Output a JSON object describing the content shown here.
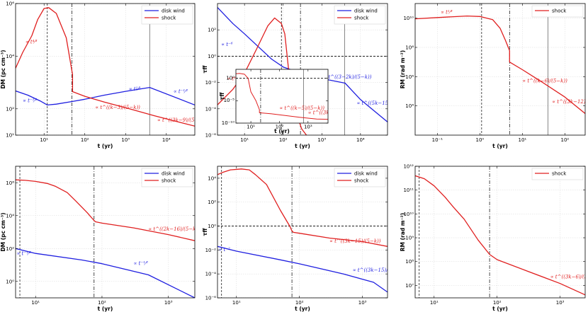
{
  "colors": {
    "disk_wind": "#1f1fe0",
    "shock": "#e01f1f",
    "grid": "#d9d9d9",
    "axis": "#000000"
  },
  "chart_data": [
    {
      "type": "line",
      "row": 0,
      "col": 0,
      "xlabel": "t (yr)",
      "ylabel": "DM (pc cm⁻³)",
      "xscale": "log",
      "yscale": "log",
      "xlim": [
        2,
        50000
      ],
      "ylim": [
        10,
        1000000
      ],
      "xticks": [
        10,
        100,
        1000,
        10000
      ],
      "xticklabels": [
        "10¹",
        "10²",
        "10³",
        "10⁴"
      ],
      "yticks": [
        10,
        100,
        10000,
        1000000
      ],
      "yticklabels": [
        "10¹",
        "10²",
        "10⁴",
        "10⁶"
      ],
      "grid": true,
      "legend": "top-right",
      "series": [
        {
          "name": "disk wind",
          "color_key": "disk_wind",
          "x": [
            2,
            4,
            8,
            12,
            20,
            50,
            100,
            300,
            1000,
            3900,
            50000
          ],
          "y": [
            480,
            330,
            200,
            140,
            150,
            190,
            230,
            330,
            460,
            650,
            140
          ]
        },
        {
          "name": "shock",
          "color_key": "shock",
          "x": [
            2,
            3,
            5,
            7,
            10,
            13,
            20,
            35,
            50,
            50,
            100,
            300,
            1000,
            5000,
            50000
          ],
          "y": [
            3500,
            14000,
            60000,
            250000,
            650000,
            700000,
            420000,
            50000,
            2000,
            450,
            300,
            180,
            110,
            55,
            22
          ]
        }
      ],
      "vlines": [
        {
          "x": 12,
          "style": "dash"
        },
        {
          "x": 48,
          "style": "dashdot"
        },
        {
          "x": 3900,
          "style": "solid"
        }
      ],
      "hlines": [],
      "annotations": [
        {
          "text": "∝ t⁴⁄³",
          "x": 3.5,
          "y": 30000,
          "color_key": "shock"
        },
        {
          "text": "∝ t⁻¹⁄²",
          "x": 3,
          "y": 180,
          "color_key": "disk_wind"
        },
        {
          "text": "∝ t¹⁄³",
          "x": 1200,
          "y": 500,
          "color_key": "disk_wind"
        },
        {
          "text": "∝ t⁻¹⁄²",
          "x": 15000,
          "y": 400,
          "color_key": "disk_wind"
        },
        {
          "text": "∝ t^((k−3)/(5−k))",
          "x": 180,
          "y": 100,
          "color_key": "shock"
        },
        {
          "text": "∝ t^((3k−9)/(5−k))",
          "x": 6000,
          "y": 32,
          "color_key": "shock"
        }
      ]
    },
    {
      "type": "line",
      "row": 0,
      "col": 1,
      "xlabel": "t (yr)",
      "ylabel": "τff",
      "xscale": "log",
      "yscale": "log",
      "xlim": [
        2,
        50000
      ],
      "ylim": [
        1e-06,
        10000
      ],
      "xticks": [
        10,
        100,
        1000,
        10000
      ],
      "xticklabels": [
        "10¹",
        "10²",
        "10³",
        "10⁴"
      ],
      "yticks": [
        1e-06,
        0.0001,
        0.01,
        1,
        100
      ],
      "yticklabels": [
        "10⁻⁶",
        "10⁻⁴",
        "10⁻²",
        "10⁰",
        "10²"
      ],
      "grid": true,
      "legend": "top-right",
      "series": [
        {
          "name": "disk wind",
          "color_key": "disk_wind",
          "x": [
            2,
            5,
            10,
            50,
            100,
            500,
            1000,
            4000,
            10000,
            50000
          ],
          "y": [
            5000,
            300,
            50,
            0.6,
            0.15,
            0.03,
            0.02,
            0.009,
            0.0005,
            1e-05
          ]
        },
        {
          "name": "shock",
          "color_key": "shock",
          "x": [
            2,
            5,
            10,
            20,
            40,
            60,
            90,
            110,
            150,
            200,
            300,
            400
          ],
          "y": [
            0.0002,
            0.003,
            0.05,
            3,
            200,
            800,
            300,
            50,
            0.01,
            0.0001,
            3e-06,
            1e-06
          ]
        }
      ],
      "vlines": [
        {
          "x": 90,
          "style": "dash"
        },
        {
          "x": 280,
          "style": "dashdot"
        },
        {
          "x": 3900,
          "style": "solid"
        }
      ],
      "hlines": [
        {
          "y": 1,
          "style": "dash"
        }
      ],
      "annotations": [
        {
          "text": "∝ t⁻⁶",
          "x": 2.5,
          "y": 6,
          "color_key": "disk_wind"
        },
        {
          "text": "∝ t⁶",
          "x": 3.5,
          "y": 0.015,
          "color_key": "shock"
        },
        {
          "text": "∝ t^((3−2k)/(5−k))",
          "x": 1100,
          "y": 0.02,
          "color_key": "disk_wind"
        },
        {
          "text": "∝ t^((5k−15)/(5−k))",
          "x": 8000,
          "y": 0.0002,
          "color_key": "disk_wind"
        }
      ]
    },
    {
      "type": "line",
      "row": 0,
      "col": 2,
      "xlabel": "t (yr)",
      "ylabel": "RM (rad m⁻²)",
      "xscale": "log",
      "yscale": "log",
      "xlim": [
        0.03,
        300
      ],
      "ylim": [
        100,
        100000000000.0
      ],
      "xticks": [
        0.1,
        1,
        10,
        100
      ],
      "xticklabels": [
        "10⁻¹",
        "10⁰",
        "10¹",
        "10²"
      ],
      "yticks": [
        10000,
        1000000,
        100000000,
        10000000000
      ],
      "yticklabels": [
        "10⁴",
        "10⁶",
        "10⁸",
        "10¹⁰"
      ],
      "grid": true,
      "legend": "top-right",
      "series": [
        {
          "name": "shock",
          "color_key": "shock",
          "x": [
            0.03,
            0.1,
            0.5,
            1,
            2,
            3,
            4,
            5,
            5,
            10,
            30,
            100,
            300
          ],
          "y": [
            9000000000,
            11000000000,
            14000000000,
            13000000000,
            8000000000,
            2000000000,
            300000000,
            60000000,
            10000000,
            3000000,
            400000,
            40000,
            3000
          ]
        }
      ],
      "vlines": [
        {
          "x": 1.1,
          "style": "dash"
        },
        {
          "x": 5,
          "style": "dashdot"
        },
        {
          "x": 40,
          "style": "solid"
        }
      ],
      "hlines": [],
      "annotations": [
        {
          "text": "∝ t¹⁄³",
          "x": 0.12,
          "y": 20000000000,
          "color_key": "shock"
        },
        {
          "text": "∝ t^((k−6)/(5−k))",
          "x": 10,
          "y": 400000,
          "color_key": "shock"
        },
        {
          "text": "∝ t^((3k−12)/(5−k))",
          "x": 50,
          "y": 15000,
          "color_key": "shock"
        }
      ]
    },
    {
      "type": "line",
      "row": 1,
      "col": 0,
      "xlabel": "t (yr)",
      "ylabel": "DM (pc cm⁻³)",
      "xscale": "log",
      "yscale": "log",
      "xlim": [
        5,
        2500
      ],
      "ylim": [
        0.1,
        10000000
      ],
      "xticks": [
        10,
        100,
        1000
      ],
      "xticklabels": [
        "10¹",
        "10²",
        "10³"
      ],
      "yticks": [
        1,
        100,
        10000,
        1000000
      ],
      "yticklabels": [
        "10⁰",
        "10²",
        "10⁴",
        "10⁶"
      ],
      "grid": true,
      "legend": "top-right",
      "series": [
        {
          "name": "disk wind",
          "color_key": "disk_wind",
          "x": [
            5,
            10,
            50,
            100,
            500,
            2500
          ],
          "y": [
            100,
            50,
            20,
            12,
            2.5,
            0.1
          ]
        },
        {
          "name": "shock",
          "color_key": "shock",
          "x": [
            5,
            7,
            10,
            15,
            20,
            30,
            40,
            60,
            76,
            80,
            100,
            300,
            1000,
            2500
          ],
          "y": [
            1500000,
            1400000,
            1200000,
            900000,
            600000,
            250000,
            80000,
            15000,
            5000,
            4200,
            3500,
            1800,
            700,
            300
          ]
        }
      ],
      "vlines": [
        {
          "x": 5.8,
          "style": "dash"
        },
        {
          "x": 76,
          "style": "dashdot"
        }
      ],
      "hlines": [],
      "annotations": [
        {
          "text": "∝ t⁻¹⁄²",
          "x": 5.2,
          "y": 40,
          "color_key": "disk_wind"
        },
        {
          "text": "∝ t⁻¹⁄²",
          "x": 300,
          "y": 10,
          "color_key": "disk_wind"
        },
        {
          "text": "∝ t^((2k−16)/(5−k))",
          "x": 500,
          "y": 1200,
          "color_key": "shock"
        }
      ]
    },
    {
      "type": "line",
      "row": 1,
      "col": 1,
      "xlabel": "t (yr)",
      "ylabel": "τff",
      "xscale": "log",
      "yscale": "log",
      "xlim": [
        5,
        2500
      ],
      "ylim": [
        1e-06,
        100000
      ],
      "xticks": [
        10,
        100,
        1000
      ],
      "xticklabels": [
        "10¹",
        "10²",
        "10³"
      ],
      "yticks": [
        1e-06,
        0.0001,
        0.01,
        1,
        100,
        10000
      ],
      "yticklabels": [
        "10⁻⁶",
        "10⁻⁴",
        "10⁻²",
        "10⁰",
        "10²",
        "10⁴"
      ],
      "grid": true,
      "legend": "top-right",
      "series": [
        {
          "name": "disk wind",
          "color_key": "disk_wind",
          "x": [
            5,
            10,
            50,
            100,
            500,
            1500,
            2500
          ],
          "y": [
            0.02,
            0.008,
            0.0015,
            0.0007,
            0.0001,
            2e-05,
            3e-06
          ]
        },
        {
          "name": "shock",
          "color_key": "shock",
          "x": [
            5,
            6,
            8,
            12,
            16,
            20,
            30,
            50,
            70,
            76,
            80,
            100,
            300,
            1000,
            2500
          ],
          "y": [
            20000,
            30000,
            50000,
            60000,
            50000,
            20000,
            3000,
            20,
            1,
            0.4,
            0.3,
            0.25,
            0.1,
            0.05,
            0.02
          ]
        }
      ],
      "vlines": [
        {
          "x": 5.8,
          "style": "dash"
        },
        {
          "x": 76,
          "style": "dashdot"
        }
      ],
      "hlines": [
        {
          "y": 1,
          "style": "dash"
        }
      ],
      "annotations": [
        {
          "text": "∝ t⁻²",
          "x": 5.2,
          "y": 0.008,
          "color_key": "disk_wind"
        },
        {
          "text": "∝ t^((3k−15)/(5−k))",
          "x": 300,
          "y": 0.04,
          "color_key": "shock"
        },
        {
          "text": "∝ t^((3k−15)/(5−k))",
          "x": 700,
          "y": 0.00015,
          "color_key": "disk_wind"
        }
      ]
    },
    {
      "type": "line",
      "row": 1,
      "col": 2,
      "xlabel": "t (yr)",
      "ylabel": "RM (rad m⁻²)",
      "xscale": "log",
      "yscale": "log",
      "xlim": [
        5,
        2500
      ],
      "ylim": [
        3000000,
        1000000000000.0
      ],
      "xticks": [
        10,
        100,
        1000
      ],
      "xticklabels": [
        "10¹",
        "10²",
        "10³"
      ],
      "yticks": [
        10000000,
        100000000,
        1000000000,
        10000000000,
        100000000000,
        1000000000000
      ],
      "yticklabels": [
        "10⁷",
        "10⁸",
        "10⁹",
        "10¹⁰",
        "10¹¹",
        "10¹²"
      ],
      "grid": true,
      "legend": "top-right",
      "series": [
        {
          "name": "shock",
          "color_key": "shock",
          "x": [
            5,
            7,
            10,
            15,
            20,
            30,
            50,
            76,
            100,
            300,
            1000,
            2500
          ],
          "y": [
            400000000000,
            300000000000,
            150000000000,
            50000000000,
            20000000000,
            6000000000,
            800000000,
            200000000,
            120000000,
            40000000,
            12000000,
            4000000
          ]
        }
      ],
      "vlines": [
        {
          "x": 5.8,
          "style": "dash"
        },
        {
          "x": 76,
          "style": "dashdot"
        }
      ],
      "hlines": [],
      "annotations": [
        {
          "text": "∝ t^((3k−6)/(5−k))",
          "x": 700,
          "y": 20000000,
          "color_key": "shock"
        }
      ]
    }
  ],
  "inset_chart": {
    "type": "line",
    "parent_panel": 1,
    "xlabel": "t (yr)",
    "ylabel": "τff",
    "xscale": "log",
    "yscale": "log",
    "xlim": [
      3,
      5000
    ],
    "ylim": [
      1e-10,
      100
    ],
    "xticks": [
      10,
      100,
      1000
    ],
    "xticklabels": [
      "10¹",
      "10²",
      "10³"
    ],
    "yticks": [
      1e-10,
      1e-05,
      1
    ],
    "yticklabels": [
      "10⁻¹⁰",
      "10⁻⁵",
      "10⁰"
    ],
    "series": [
      {
        "name": "shock",
        "color_key": "shock",
        "x": [
          3,
          4,
          6,
          8,
          10,
          15,
          20,
          20,
          50,
          100,
          500,
          2000,
          5000
        ],
        "y": [
          10,
          12,
          8,
          1,
          0.001,
          1e-05,
          1e-07,
          2e-08,
          1.2e-08,
          7e-09,
          2e-09,
          8e-10,
          7e-10
        ]
      }
    ],
    "vlines": [
      {
        "x": 22,
        "style": "dashdot"
      },
      {
        "x": 700,
        "style": "solid"
      }
    ],
    "hlines": [
      {
        "y": 1,
        "style": "dash"
      }
    ],
    "annotations": [
      {
        "text": "∝ t^((k−5)/(5−k))",
        "x": 100,
        "y": 1e-07,
        "color_key": "shock"
      },
      {
        "text": "∝ t^((3k−12)/(5−k))",
        "x": 1000,
        "y": 1e-08,
        "color_key": "shock"
      }
    ]
  }
}
